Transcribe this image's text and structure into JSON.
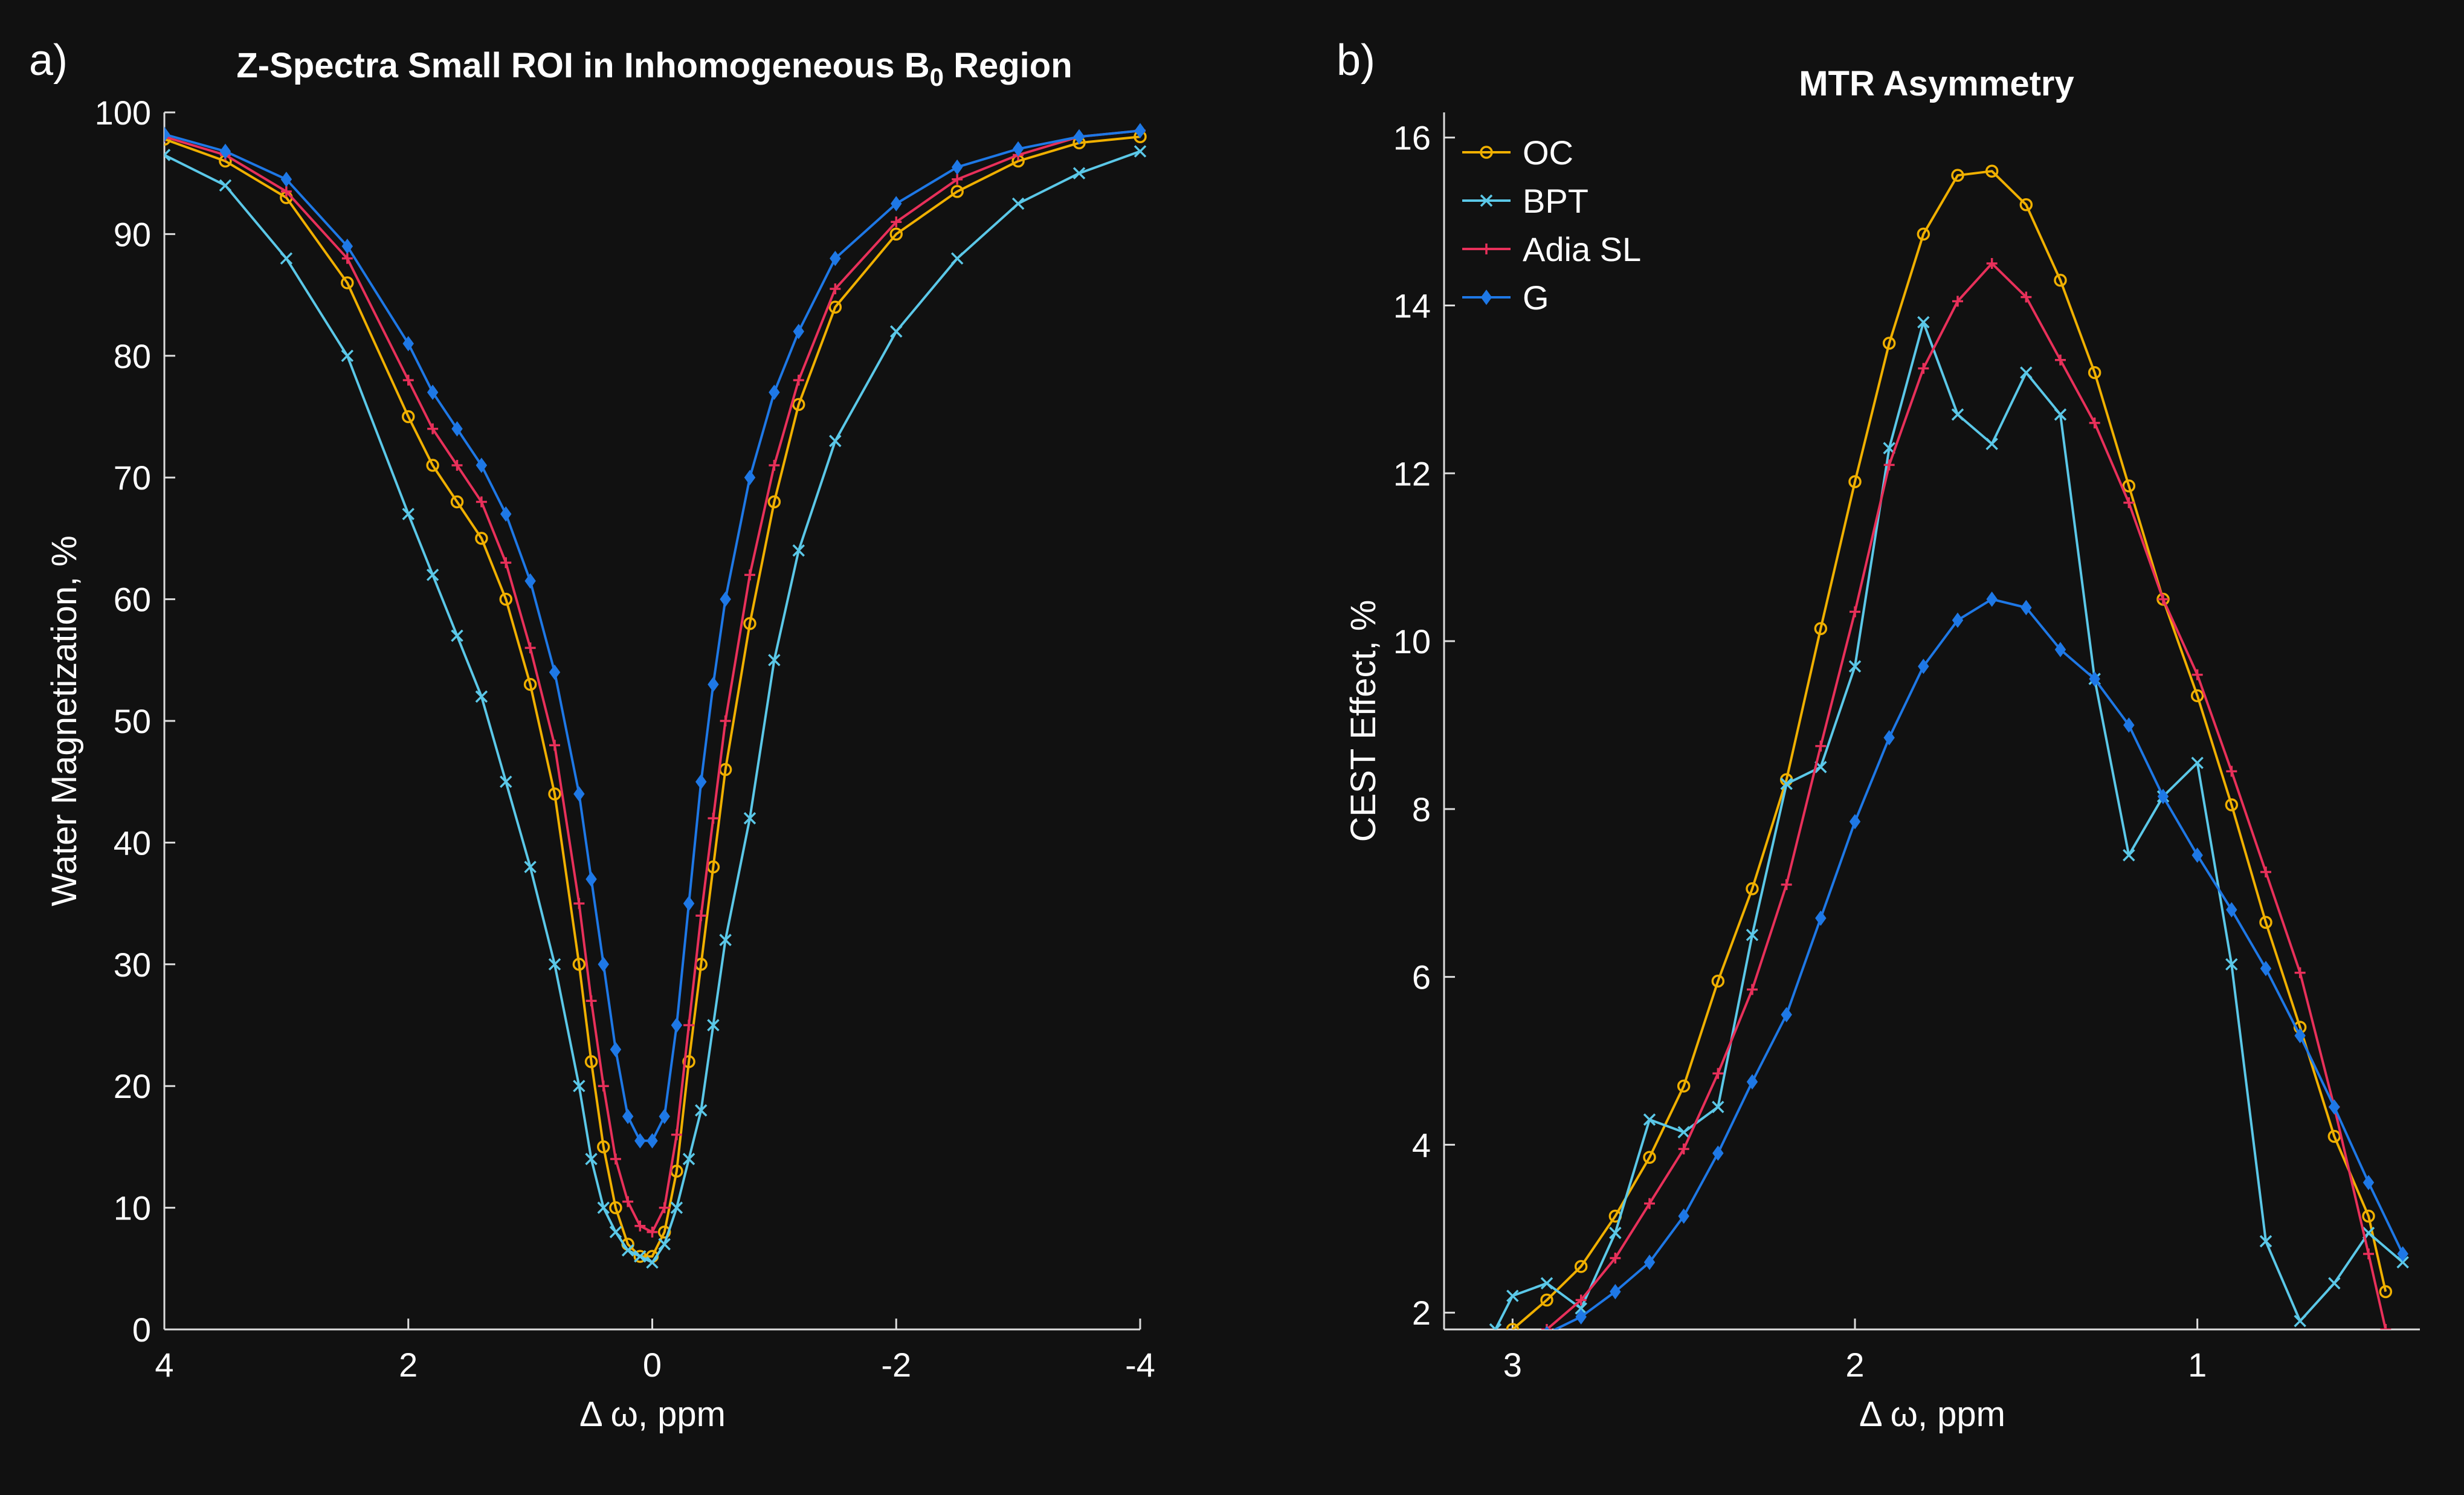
{
  "chart_data": [
    {
      "panel_label": "a)",
      "type": "line",
      "title_main": "Z-Spectra Small ROI in Inhomogeneous B",
      "title_sub": "0",
      "title_tail": " Region",
      "xlabel": "Δ ω, ppm",
      "ylabel": "Water Magnetization, %",
      "xlim": [
        4,
        -4
      ],
      "ylim": [
        0,
        100
      ],
      "xticks": [
        4,
        2,
        0,
        -2,
        -4
      ],
      "xtick_labels": [
        "4",
        "2",
        "0",
        "-2",
        "-4"
      ],
      "yticks": [
        0,
        10,
        20,
        30,
        40,
        50,
        60,
        70,
        80,
        90,
        100
      ],
      "ytick_labels": [
        "0",
        "10",
        "20",
        "30",
        "40",
        "50",
        "60",
        "70",
        "80",
        "90",
        "100"
      ],
      "series": [
        {
          "name": "OC",
          "color": "#F0B000",
          "marker": "circle",
          "x": [
            4.0,
            3.5,
            3.0,
            2.5,
            2.0,
            1.8,
            1.6,
            1.4,
            1.2,
            1.0,
            0.8,
            0.6,
            0.5,
            0.4,
            0.3,
            0.2,
            0.1,
            0.0,
            -0.1,
            -0.2,
            -0.3,
            -0.4,
            -0.5,
            -0.6,
            -0.8,
            -1.0,
            -1.2,
            -1.5,
            -2.0,
            -2.5,
            -3.0,
            -3.5,
            -4.0
          ],
          "y": [
            97.8,
            96.0,
            93.0,
            86.0,
            75.0,
            71.0,
            68.0,
            65.0,
            60.0,
            53.0,
            44.0,
            30.0,
            22.0,
            15.0,
            10.0,
            7.0,
            6.0,
            6.0,
            8.0,
            13.0,
            22.0,
            30.0,
            38.0,
            46.0,
            58.0,
            68.0,
            76.0,
            84.0,
            90.0,
            93.5,
            96.0,
            97.5,
            98.0
          ]
        },
        {
          "name": "BPT",
          "color": "#5BC8E8",
          "marker": "x",
          "x": [
            4.0,
            3.5,
            3.0,
            2.5,
            2.0,
            1.8,
            1.6,
            1.4,
            1.2,
            1.0,
            0.8,
            0.6,
            0.5,
            0.4,
            0.3,
            0.2,
            0.1,
            0.0,
            -0.1,
            -0.2,
            -0.3,
            -0.4,
            -0.5,
            -0.6,
            -0.8,
            -1.0,
            -1.2,
            -1.5,
            -2.0,
            -2.5,
            -3.0,
            -3.5,
            -4.0
          ],
          "y": [
            96.5,
            94.0,
            88.0,
            80.0,
            67.0,
            62.0,
            57.0,
            52.0,
            45.0,
            38.0,
            30.0,
            20.0,
            14.0,
            10.0,
            8.0,
            6.5,
            6.0,
            5.5,
            7.0,
            10.0,
            14.0,
            18.0,
            25.0,
            32.0,
            42.0,
            55.0,
            64.0,
            73.0,
            82.0,
            88.0,
            92.5,
            95.0,
            96.8
          ]
        },
        {
          "name": "Adia SL",
          "color": "#E8305A",
          "marker": "plus",
          "x": [
            4.0,
            3.5,
            3.0,
            2.5,
            2.0,
            1.8,
            1.6,
            1.4,
            1.2,
            1.0,
            0.8,
            0.6,
            0.5,
            0.4,
            0.3,
            0.2,
            0.1,
            0.0,
            -0.1,
            -0.2,
            -0.3,
            -0.4,
            -0.5,
            -0.6,
            -0.8,
            -1.0,
            -1.2,
            -1.5,
            -2.0,
            -2.5,
            -3.0,
            -3.5,
            -4.0
          ],
          "y": [
            98.0,
            96.5,
            93.5,
            88.0,
            78.0,
            74.0,
            71.0,
            68.0,
            63.0,
            56.0,
            48.0,
            35.0,
            27.0,
            20.0,
            14.0,
            10.5,
            8.5,
            8.0,
            10.0,
            16.0,
            25.0,
            34.0,
            42.0,
            50.0,
            62.0,
            71.0,
            78.0,
            85.5,
            91.0,
            94.5,
            96.5,
            98.0,
            98.5
          ]
        },
        {
          "name": "G",
          "color": "#1E78E6",
          "marker": "diamond",
          "x": [
            4.0,
            3.5,
            3.0,
            2.5,
            2.0,
            1.8,
            1.6,
            1.4,
            1.2,
            1.0,
            0.8,
            0.6,
            0.5,
            0.4,
            0.3,
            0.2,
            0.1,
            0.0,
            -0.1,
            -0.2,
            -0.3,
            -0.4,
            -0.5,
            -0.6,
            -0.8,
            -1.0,
            -1.2,
            -1.5,
            -2.0,
            -2.5,
            -3.0,
            -3.5,
            -4.0
          ],
          "y": [
            98.2,
            96.8,
            94.5,
            89.0,
            81.0,
            77.0,
            74.0,
            71.0,
            67.0,
            61.5,
            54.0,
            44.0,
            37.0,
            30.0,
            23.0,
            17.5,
            15.5,
            15.5,
            17.5,
            25.0,
            35.0,
            45.0,
            53.0,
            60.0,
            70.0,
            77.0,
            82.0,
            88.0,
            92.5,
            95.5,
            97.0,
            98.0,
            98.5
          ]
        }
      ]
    },
    {
      "panel_label": "b)",
      "type": "line",
      "title": "MTR Asymmetry",
      "xlabel": "Δ ω, ppm",
      "ylabel": "CEST Effect, %",
      "xlim": [
        3.2,
        0.35
      ],
      "ylim": [
        1.8,
        16.3
      ],
      "xticks": [
        3,
        2,
        1
      ],
      "xtick_labels": [
        "3",
        "2",
        "1"
      ],
      "yticks": [
        2,
        4,
        6,
        8,
        10,
        12,
        14,
        16
      ],
      "ytick_labels": [
        "2",
        "4",
        "6",
        "8",
        "10",
        "12",
        "14",
        "16"
      ],
      "legend": {
        "entries": [
          "OC",
          "BPT",
          "Adia SL",
          "G"
        ],
        "location": "top-left"
      },
      "series": [
        {
          "name": "OC",
          "color": "#F0B000",
          "marker": "circle",
          "x": [
            3.0,
            2.9,
            2.8,
            2.7,
            2.6,
            2.5,
            2.4,
            2.3,
            2.2,
            2.1,
            2.0,
            1.9,
            1.8,
            1.7,
            1.6,
            1.5,
            1.4,
            1.3,
            1.2,
            1.1,
            1.0,
            0.9,
            0.8,
            0.7,
            0.6,
            0.5,
            0.45
          ],
          "y": [
            1.8,
            2.15,
            2.55,
            3.15,
            3.85,
            4.7,
            5.95,
            7.05,
            8.35,
            10.15,
            11.9,
            13.55,
            14.85,
            15.55,
            15.6,
            15.2,
            14.3,
            13.2,
            11.85,
            10.5,
            9.35,
            8.05,
            6.65,
            5.4,
            4.1,
            3.15,
            2.25
          ]
        },
        {
          "name": "BPT",
          "color": "#5BC8E8",
          "marker": "x",
          "x": [
            3.05,
            3.0,
            2.9,
            2.8,
            2.7,
            2.6,
            2.5,
            2.4,
            2.3,
            2.2,
            2.1,
            2.0,
            1.9,
            1.8,
            1.7,
            1.6,
            1.5,
            1.4,
            1.3,
            1.2,
            1.1,
            1.0,
            0.9,
            0.8,
            0.7,
            0.6,
            0.5,
            0.4
          ],
          "y": [
            1.8,
            2.2,
            2.35,
            2.05,
            2.95,
            4.3,
            4.15,
            4.45,
            6.5,
            8.3,
            8.5,
            9.7,
            12.3,
            13.8,
            12.7,
            12.35,
            13.2,
            12.7,
            9.55,
            7.45,
            8.15,
            8.55,
            6.15,
            2.85,
            1.9,
            2.35,
            2.95,
            2.6
          ]
        },
        {
          "name": "Adia SL",
          "color": "#E8305A",
          "marker": "plus",
          "x": [
            2.9,
            2.8,
            2.7,
            2.6,
            2.5,
            2.4,
            2.3,
            2.2,
            2.1,
            2.0,
            1.9,
            1.8,
            1.7,
            1.6,
            1.5,
            1.4,
            1.3,
            1.2,
            1.1,
            1.0,
            0.9,
            0.8,
            0.7,
            0.6,
            0.5,
            0.45
          ],
          "y": [
            1.8,
            2.15,
            2.65,
            3.3,
            3.95,
            4.85,
            5.85,
            7.1,
            8.75,
            10.35,
            12.1,
            13.25,
            14.05,
            14.5,
            14.1,
            13.35,
            12.6,
            11.65,
            10.5,
            9.6,
            8.45,
            7.25,
            6.05,
            4.45,
            2.7,
            1.8
          ]
        },
        {
          "name": "G",
          "color": "#1E78E6",
          "marker": "diamond",
          "x": [
            2.9,
            2.8,
            2.7,
            2.6,
            2.5,
            2.4,
            2.3,
            2.2,
            2.1,
            2.0,
            1.9,
            1.8,
            1.7,
            1.6,
            1.5,
            1.4,
            1.3,
            1.2,
            1.1,
            1.0,
            0.9,
            0.8,
            0.7,
            0.6,
            0.5,
            0.4
          ],
          "y": [
            1.75,
            1.95,
            2.25,
            2.6,
            3.15,
            3.9,
            4.75,
            5.55,
            6.7,
            7.85,
            8.85,
            9.7,
            10.25,
            10.5,
            10.4,
            9.9,
            9.55,
            9.0,
            8.15,
            7.45,
            6.8,
            6.1,
            5.3,
            4.45,
            3.55,
            2.7
          ]
        }
      ]
    }
  ]
}
